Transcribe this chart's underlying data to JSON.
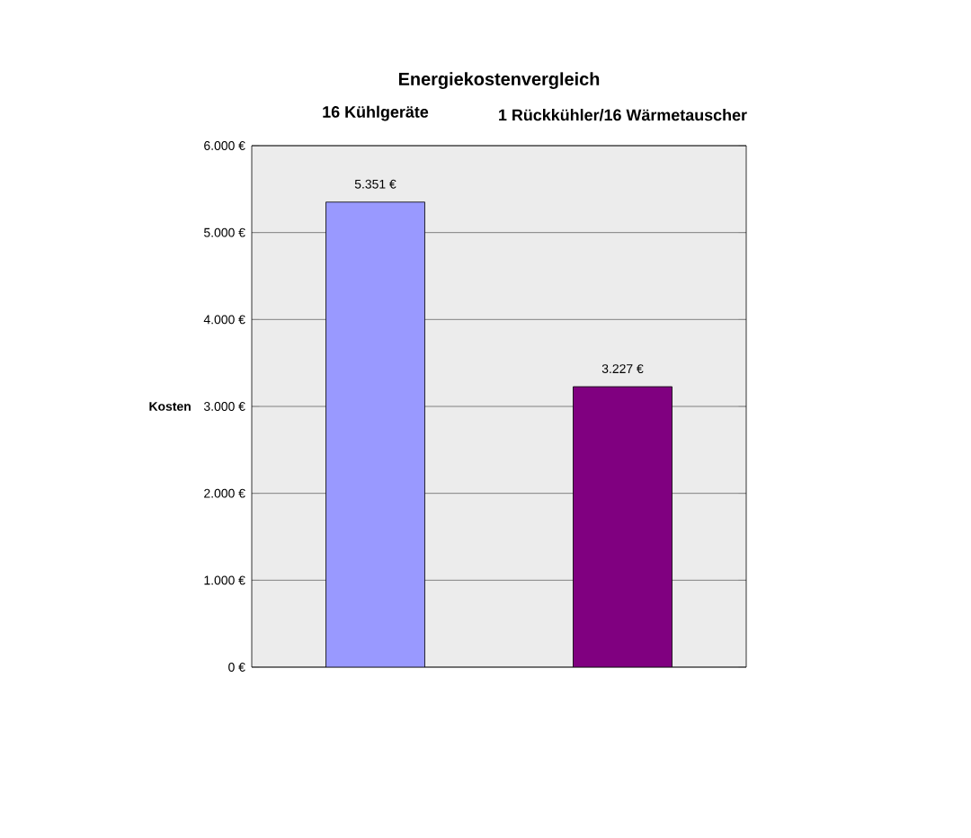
{
  "chart_data": {
    "type": "bar",
    "title": "Energiekostenvergleich",
    "ylabel": "Kosten",
    "categories": [
      "16 Kühlgeräte",
      "1 Rückkühler/16 Wärmetauscher"
    ],
    "values": [
      5351,
      3227
    ],
    "colors": [
      "#9999ff",
      "#800080"
    ],
    "value_labels": [
      "5.351 €",
      "3.227 €"
    ],
    "ylim": [
      0,
      6000
    ],
    "yticks": [
      {
        "value": 0,
        "label": "0 €"
      },
      {
        "value": 1000,
        "label": "1.000 €"
      },
      {
        "value": 2000,
        "label": "2.000 €"
      },
      {
        "value": 3000,
        "label": "3.000 €"
      },
      {
        "value": 4000,
        "label": "4.000 €"
      },
      {
        "value": 5000,
        "label": "5.000 €"
      },
      {
        "value": 6000,
        "label": "6.000 €"
      }
    ],
    "grid": "y"
  }
}
